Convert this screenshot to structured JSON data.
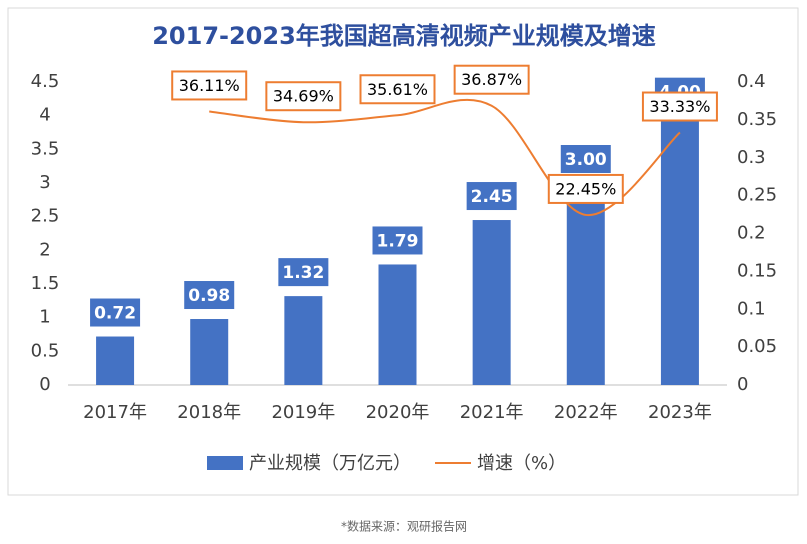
{
  "chart_data": {
    "type": "bar-line",
    "title": "2017-2023年我国超高清视频产业规模及增速",
    "categories": [
      "2017年",
      "2018年",
      "2019年",
      "2020年",
      "2021年",
      "2022年",
      "2023年"
    ],
    "series": [
      {
        "name": "产业规模（万亿元）",
        "type": "bar",
        "color": "#4472c4",
        "values": [
          0.72,
          0.98,
          1.32,
          1.79,
          2.45,
          3.0,
          4.0
        ],
        "value_labels": [
          "0.72",
          "0.98",
          "1.32",
          "1.79",
          "2.45",
          "3.00",
          "4.00"
        ]
      },
      {
        "name": "增速（%）",
        "type": "line",
        "axis": "y2",
        "color": "#ed7d31",
        "values": [
          null,
          0.3611,
          0.3469,
          0.3561,
          0.3687,
          0.2245,
          0.3333
        ],
        "value_labels": [
          null,
          "36.11%",
          "34.69%",
          "35.61%",
          "36.87%",
          "22.45%",
          "33.33%"
        ]
      }
    ],
    "ylim": [
      0,
      4.5
    ],
    "yticks": [
      0,
      0.5,
      1,
      1.5,
      2,
      2.5,
      3,
      3.5,
      4,
      4.5
    ],
    "y2lim": [
      0,
      0.4
    ],
    "y2ticks": [
      0,
      0.05,
      0.1,
      0.15,
      0.2,
      0.25,
      0.3,
      0.35,
      0.4
    ],
    "grid": false,
    "legend": "bottom",
    "source": "*数据来源：观研报告网"
  }
}
